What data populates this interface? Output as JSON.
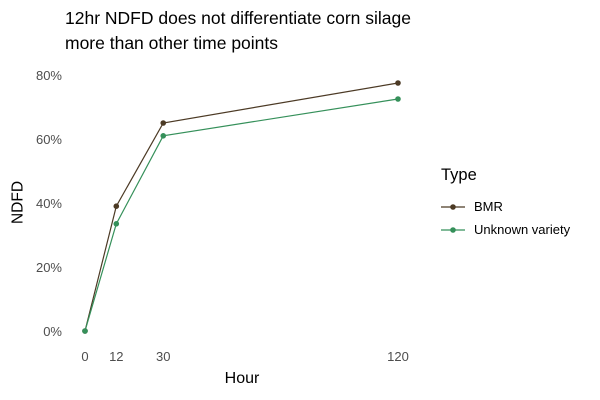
{
  "title": "12hr NDFD does not differentiate corn silage\nmore than other time points",
  "y_axis": {
    "title": "NDFD",
    "tick_labels": [
      "0%",
      "20%",
      "40%",
      "60%",
      "80%"
    ],
    "tick_values": [
      0,
      20,
      40,
      60,
      80
    ]
  },
  "x_axis": {
    "title": "Hour",
    "tick_labels": [
      "0",
      "12",
      "30",
      "120"
    ],
    "tick_values": [
      0,
      12,
      30,
      120
    ]
  },
  "legend": {
    "title": "Type",
    "entries": [
      {
        "label": "BMR",
        "color": "#4c3a25"
      },
      {
        "label": "Unknown variety",
        "color": "#35905a"
      }
    ]
  },
  "colors": {
    "background": "#ffffff",
    "title_text": "#000000",
    "tick_text": "#4d4d4d",
    "bmr_series": "#4c3a25",
    "unknown_series": "#35905a"
  },
  "chart_data": {
    "type": "line",
    "title": "12hr NDFD does not differentiate corn silage more than other time points",
    "xlabel": "Hour",
    "ylabel": "NDFD",
    "x": [
      0,
      12,
      30,
      120
    ],
    "xlim": [
      0,
      120
    ],
    "ylim": [
      0,
      80
    ],
    "y_tick_values": [
      0,
      20,
      40,
      60,
      80
    ],
    "y_tick_format": "percent",
    "grid": false,
    "axis_lines": false,
    "markers": true,
    "legend_position": "right",
    "series": [
      {
        "name": "BMR",
        "color": "#4c3a25",
        "values": [
          0,
          39,
          65,
          77.5
        ]
      },
      {
        "name": "Unknown variety",
        "color": "#35905a",
        "values": [
          0,
          33.5,
          61,
          72.5
        ]
      }
    ]
  }
}
